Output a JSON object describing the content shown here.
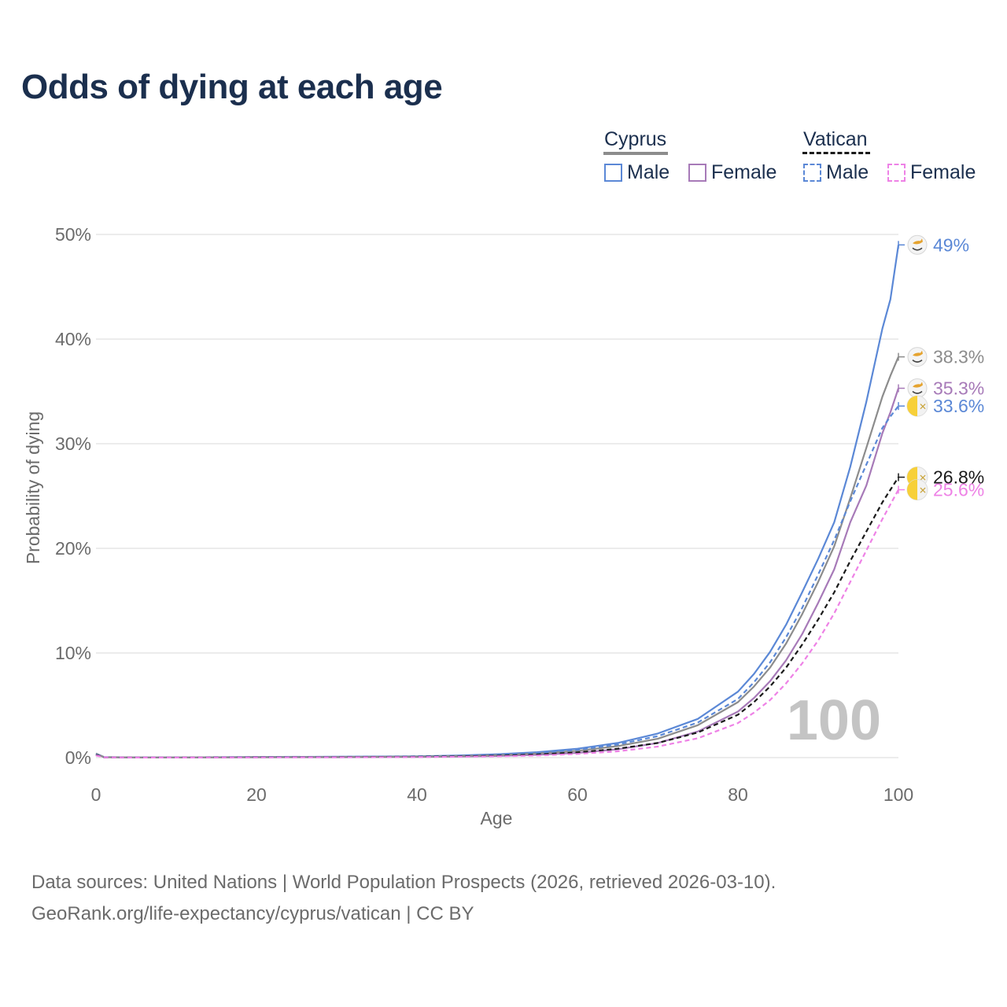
{
  "title": "Odds of dying at each age",
  "legend": {
    "groups": [
      {
        "name": "Cyprus",
        "style": "solid",
        "color": "#8c8c8c"
      },
      {
        "name": "Vatican",
        "style": "dashed",
        "color": "#1a1a1a"
      }
    ],
    "items": [
      {
        "label": "Male",
        "group": "Cyprus",
        "color": "#5b88d6",
        "dashed": false
      },
      {
        "label": "Female",
        "group": "Cyprus",
        "color": "#a77ab8",
        "dashed": false
      },
      {
        "label": "Male",
        "group": "Vatican",
        "color": "#5b88d6",
        "dashed": true
      },
      {
        "label": "Female",
        "group": "Vatican",
        "color": "#ee82e6",
        "dashed": true
      }
    ]
  },
  "watermark": "100",
  "footer": {
    "line1": "Data sources: United Nations | World Population Prospects (2026, retrieved 2026-03-10).",
    "line2": "GeoRank.org/life-expectancy/cyprus/vatican | CC BY"
  },
  "chart_data": {
    "type": "line",
    "title": "Odds of dying at each age",
    "xlabel": "Age",
    "ylabel": "Probability of dying",
    "xlim": [
      0,
      100
    ],
    "ylim": [
      0,
      50
    ],
    "xticks": [
      "0",
      "20",
      "40",
      "60",
      "80",
      "100"
    ],
    "yticks": [
      "0%",
      "10%",
      "20%",
      "30%",
      "40%",
      "50%"
    ],
    "grid": true,
    "legend_position": "top-right",
    "ages": [
      0,
      1,
      5,
      10,
      20,
      30,
      40,
      45,
      50,
      55,
      60,
      65,
      70,
      75,
      80,
      82,
      84,
      86,
      88,
      90,
      92,
      94,
      96,
      98,
      99,
      100
    ],
    "series": [
      {
        "name": "Cyprus Male",
        "country": "Cyprus",
        "sex": "Male",
        "color": "#5b88d6",
        "dashed": false,
        "end_label": "49%",
        "values": [
          0.4,
          0.05,
          0.02,
          0.02,
          0.06,
          0.08,
          0.13,
          0.2,
          0.32,
          0.52,
          0.85,
          1.4,
          2.3,
          3.7,
          6.3,
          8.0,
          10.1,
          12.7,
          15.8,
          19.0,
          22.5,
          27.8,
          34.0,
          41.0,
          43.8,
          49.0
        ]
      },
      {
        "name": "Cyprus Female",
        "country": "Cyprus",
        "sex": "Female",
        "color": "#a77ab8",
        "dashed": false,
        "end_label": "35.3%",
        "values": [
          0.35,
          0.04,
          0.01,
          0.01,
          0.03,
          0.04,
          0.07,
          0.1,
          0.16,
          0.27,
          0.45,
          0.8,
          1.4,
          2.5,
          4.4,
          5.7,
          7.3,
          9.3,
          11.8,
          14.8,
          18.0,
          22.5,
          26.0,
          31.0,
          33.0,
          35.3
        ]
      },
      {
        "name": "Cyprus (total)",
        "country": "Cyprus",
        "sex": "Total",
        "color": "#8c8c8c",
        "dashed": false,
        "end_label": "38.3%",
        "values": [
          0.38,
          0.045,
          0.015,
          0.015,
          0.045,
          0.06,
          0.1,
          0.15,
          0.24,
          0.4,
          0.65,
          1.1,
          1.8,
          3.1,
          5.3,
          6.8,
          8.6,
          10.9,
          13.7,
          16.8,
          20.2,
          24.8,
          29.6,
          34.5,
          36.5,
          38.3
        ]
      },
      {
        "name": "Vatican Male",
        "country": "Vatican",
        "sex": "Male",
        "color": "#5b88d6",
        "dashed": true,
        "end_label": "33.6%",
        "values": [
          0.3,
          0.04,
          0.02,
          0.02,
          0.05,
          0.07,
          0.11,
          0.17,
          0.27,
          0.45,
          0.75,
          1.25,
          2.05,
          3.35,
          5.6,
          7.2,
          9.1,
          11.5,
          14.3,
          17.5,
          20.8,
          24.5,
          28.0,
          31.5,
          32.6,
          33.6
        ]
      },
      {
        "name": "Vatican (total)",
        "country": "Vatican",
        "sex": "Total",
        "color": "#1a1a1a",
        "dashed": true,
        "end_label": "26.8%",
        "values": [
          0.25,
          0.03,
          0.015,
          0.015,
          0.04,
          0.05,
          0.08,
          0.12,
          0.18,
          0.3,
          0.5,
          0.85,
          1.4,
          2.4,
          4.1,
          5.3,
          6.8,
          8.6,
          10.8,
          13.2,
          15.8,
          18.8,
          21.6,
          24.4,
          25.6,
          26.8
        ]
      },
      {
        "name": "Vatican Female",
        "country": "Vatican",
        "sex": "Female",
        "color": "#ee82e6",
        "dashed": true,
        "end_label": "25.6%",
        "values": [
          0.2,
          0.03,
          0.01,
          0.01,
          0.02,
          0.03,
          0.05,
          0.08,
          0.12,
          0.2,
          0.35,
          0.6,
          1.05,
          1.85,
          3.3,
          4.3,
          5.5,
          7.1,
          9.0,
          11.2,
          13.8,
          16.8,
          19.8,
          22.8,
          24.2,
          25.6
        ]
      }
    ]
  }
}
